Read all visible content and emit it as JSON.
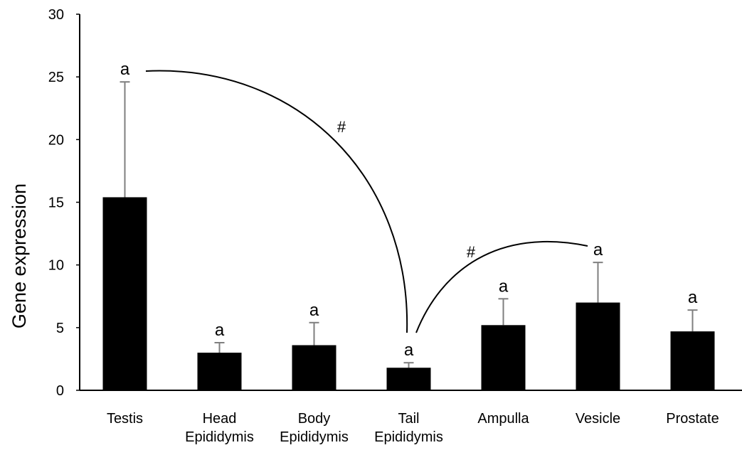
{
  "chart_data": {
    "type": "bar",
    "ylabel": "Gene expression",
    "categories": [
      "Testis",
      "Head Epididymis",
      "Body Epididymis",
      "Tail Epididymis",
      "Ampulla",
      "Vesicle",
      "Prostate"
    ],
    "values": [
      15.4,
      3.0,
      3.6,
      1.8,
      5.2,
      7.0,
      4.7
    ],
    "errors": [
      9.2,
      0.8,
      1.8,
      0.4,
      2.1,
      3.2,
      1.7
    ],
    "significance_letters": [
      "a",
      "a",
      "a",
      "a",
      "a",
      "a",
      "a"
    ],
    "annotations": [
      "#",
      "#"
    ],
    "color": "#000000",
    "error_color": "#7f7f7f",
    "ylim": [
      0,
      30
    ],
    "yticks": [
      0,
      5,
      10,
      15,
      20,
      25,
      30
    ],
    "grid": false
  }
}
